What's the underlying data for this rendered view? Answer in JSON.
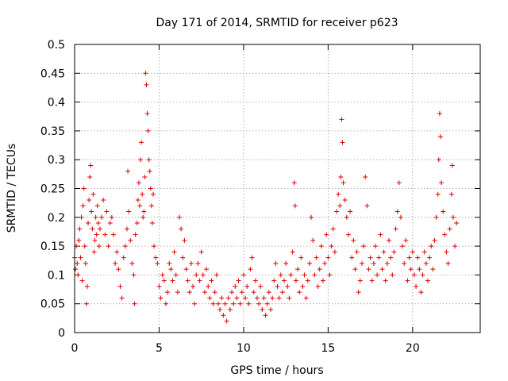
{
  "chart_data": {
    "type": "scatter",
    "title": "Day 171 of 2014, SRMTID for receiver p623",
    "xlabel": "GPS time / hours",
    "ylabel": "SRMTID / TECUs",
    "xlim": [
      0,
      24
    ],
    "ylim": [
      0,
      0.5
    ],
    "x_ticks": [
      0,
      5,
      10,
      15,
      20
    ],
    "x_tick_labels": [
      "0",
      "5",
      "10",
      "15",
      "20"
    ],
    "y_ticks": [
      0,
      0.05,
      0.1,
      0.15,
      0.2,
      0.25,
      0.3,
      0.35,
      0.4,
      0.45,
      0.5
    ],
    "y_tick_labels": [
      "0",
      "0.05",
      "0.1",
      "0.15",
      "0.2",
      "0.25",
      "0.3",
      "0.35",
      "0.4",
      "0.45",
      "0.5"
    ],
    "grid": true,
    "marker": "+",
    "color": "#e00000",
    "series": [
      {
        "name": "SRMTID",
        "points": [
          [
            0.0,
            0.13
          ],
          [
            0.05,
            0.11
          ],
          [
            0.1,
            0.15
          ],
          [
            0.15,
            0.12
          ],
          [
            0.2,
            0.1
          ],
          [
            0.25,
            0.16
          ],
          [
            0.3,
            0.18
          ],
          [
            0.35,
            0.13
          ],
          [
            0.4,
            0.2
          ],
          [
            0.45,
            0.09
          ],
          [
            0.5,
            0.22
          ],
          [
            0.55,
            0.25
          ],
          [
            0.6,
            0.15
          ],
          [
            0.65,
            0.12
          ],
          [
            0.7,
            0.05
          ],
          [
            0.75,
            0.08
          ],
          [
            0.8,
            0.19
          ],
          [
            0.85,
            0.23
          ],
          [
            0.9,
            0.27
          ],
          [
            0.95,
            0.29
          ],
          [
            1.0,
            0.21
          ],
          [
            1.05,
            0.18
          ],
          [
            1.1,
            0.24
          ],
          [
            1.15,
            0.14
          ],
          [
            1.2,
            0.16
          ],
          [
            1.25,
            0.2
          ],
          [
            1.3,
            0.17
          ],
          [
            1.35,
            0.22
          ],
          [
            1.4,
            0.19
          ],
          [
            1.45,
            0.15
          ],
          [
            1.5,
            0.18
          ],
          [
            1.6,
            0.2
          ],
          [
            1.7,
            0.23
          ],
          [
            1.8,
            0.17
          ],
          [
            1.9,
            0.21
          ],
          [
            2.0,
            0.15
          ],
          [
            2.1,
            0.19
          ],
          [
            2.2,
            0.2
          ],
          [
            2.3,
            0.17
          ],
          [
            2.4,
            0.12
          ],
          [
            2.5,
            0.14
          ],
          [
            2.6,
            0.11
          ],
          [
            2.7,
            0.08
          ],
          [
            2.8,
            0.06
          ],
          [
            2.9,
            0.13
          ],
          [
            3.0,
            0.15
          ],
          [
            3.1,
            0.18
          ],
          [
            3.15,
            0.28
          ],
          [
            3.2,
            0.21
          ],
          [
            3.3,
            0.16
          ],
          [
            3.4,
            0.12
          ],
          [
            3.5,
            0.1
          ],
          [
            3.55,
            0.05
          ],
          [
            3.6,
            0.17
          ],
          [
            3.7,
            0.19
          ],
          [
            3.75,
            0.23
          ],
          [
            3.8,
            0.26
          ],
          [
            3.85,
            0.22
          ],
          [
            3.9,
            0.3
          ],
          [
            3.95,
            0.33
          ],
          [
            4.0,
            0.24
          ],
          [
            4.05,
            0.2
          ],
          [
            4.1,
            0.21
          ],
          [
            4.15,
            0.27
          ],
          [
            4.2,
            0.45
          ],
          [
            4.25,
            0.43
          ],
          [
            4.3,
            0.38
          ],
          [
            4.35,
            0.35
          ],
          [
            4.4,
            0.3
          ],
          [
            4.45,
            0.28
          ],
          [
            4.5,
            0.25
          ],
          [
            4.55,
            0.22
          ],
          [
            4.6,
            0.19
          ],
          [
            4.65,
            0.24
          ],
          [
            4.7,
            0.15
          ],
          [
            4.8,
            0.13
          ],
          [
            4.9,
            0.12
          ],
          [
            5.0,
            0.08
          ],
          [
            5.1,
            0.06
          ],
          [
            5.2,
            0.1
          ],
          [
            5.3,
            0.09
          ],
          [
            5.4,
            0.05
          ],
          [
            5.5,
            0.07
          ],
          [
            5.6,
            0.12
          ],
          [
            5.7,
            0.11
          ],
          [
            5.8,
            0.09
          ],
          [
            5.9,
            0.14
          ],
          [
            6.0,
            0.1
          ],
          [
            6.1,
            0.07
          ],
          [
            6.2,
            0.2
          ],
          [
            6.3,
            0.18
          ],
          [
            6.4,
            0.13
          ],
          [
            6.5,
            0.16
          ],
          [
            6.6,
            0.11
          ],
          [
            6.7,
            0.09
          ],
          [
            6.8,
            0.07
          ],
          [
            6.9,
            0.12
          ],
          [
            7.0,
            0.08
          ],
          [
            7.1,
            0.05
          ],
          [
            7.2,
            0.1
          ],
          [
            7.3,
            0.12
          ],
          [
            7.4,
            0.09
          ],
          [
            7.5,
            0.14
          ],
          [
            7.6,
            0.1
          ],
          [
            7.7,
            0.07
          ],
          [
            7.8,
            0.11
          ],
          [
            7.9,
            0.08
          ],
          [
            8.0,
            0.06
          ],
          [
            8.1,
            0.09
          ],
          [
            8.2,
            0.05
          ],
          [
            8.3,
            0.07
          ],
          [
            8.4,
            0.1
          ],
          [
            8.5,
            0.05
          ],
          [
            8.6,
            0.04
          ],
          [
            8.7,
            0.06
          ],
          [
            8.8,
            0.03
          ],
          [
            8.9,
            0.05
          ],
          [
            9.0,
            0.02
          ],
          [
            9.1,
            0.06
          ],
          [
            9.2,
            0.04
          ],
          [
            9.3,
            0.07
          ],
          [
            9.4,
            0.05
          ],
          [
            9.5,
            0.08
          ],
          [
            9.6,
            0.06
          ],
          [
            9.7,
            0.09
          ],
          [
            9.8,
            0.05
          ],
          [
            9.9,
            0.07
          ],
          [
            10.0,
            0.1
          ],
          [
            10.1,
            0.06
          ],
          [
            10.2,
            0.08
          ],
          [
            10.3,
            0.05
          ],
          [
            10.4,
            0.11
          ],
          [
            10.5,
            0.13
          ],
          [
            10.6,
            0.07
          ],
          [
            10.7,
            0.09
          ],
          [
            10.8,
            0.06
          ],
          [
            10.9,
            0.05
          ],
          [
            11.0,
            0.08
          ],
          [
            11.1,
            0.04
          ],
          [
            11.2,
            0.06
          ],
          [
            11.3,
            0.03
          ],
          [
            11.4,
            0.05
          ],
          [
            11.5,
            0.07
          ],
          [
            11.6,
            0.04
          ],
          [
            11.7,
            0.06
          ],
          [
            11.8,
            0.09
          ],
          [
            11.9,
            0.12
          ],
          [
            12.0,
            0.08
          ],
          [
            12.1,
            0.06
          ],
          [
            12.2,
            0.1
          ],
          [
            12.3,
            0.07
          ],
          [
            12.4,
            0.09
          ],
          [
            12.5,
            0.12
          ],
          [
            12.6,
            0.08
          ],
          [
            12.7,
            0.06
          ],
          [
            12.8,
            0.1
          ],
          [
            12.9,
            0.14
          ],
          [
            13.0,
            0.26
          ],
          [
            13.05,
            0.22
          ],
          [
            13.1,
            0.09
          ],
          [
            13.2,
            0.11
          ],
          [
            13.3,
            0.07
          ],
          [
            13.4,
            0.13
          ],
          [
            13.5,
            0.08
          ],
          [
            13.6,
            0.1
          ],
          [
            13.7,
            0.06
          ],
          [
            13.8,
            0.09
          ],
          [
            13.9,
            0.12
          ],
          [
            14.0,
            0.2
          ],
          [
            14.1,
            0.16
          ],
          [
            14.2,
            0.1
          ],
          [
            14.3,
            0.13
          ],
          [
            14.4,
            0.08
          ],
          [
            14.5,
            0.11
          ],
          [
            14.6,
            0.15
          ],
          [
            14.7,
            0.09
          ],
          [
            14.8,
            0.12
          ],
          [
            14.9,
            0.17
          ],
          [
            15.0,
            0.13
          ],
          [
            15.1,
            0.1
          ],
          [
            15.2,
            0.15
          ],
          [
            15.3,
            0.18
          ],
          [
            15.4,
            0.14
          ],
          [
            15.5,
            0.21
          ],
          [
            15.6,
            0.24
          ],
          [
            15.7,
            0.22
          ],
          [
            15.75,
            0.27
          ],
          [
            15.8,
            0.37
          ],
          [
            15.85,
            0.33
          ],
          [
            15.9,
            0.26
          ],
          [
            16.0,
            0.23
          ],
          [
            16.1,
            0.2
          ],
          [
            16.2,
            0.17
          ],
          [
            16.3,
            0.21
          ],
          [
            16.4,
            0.13
          ],
          [
            16.5,
            0.16
          ],
          [
            16.6,
            0.11
          ],
          [
            16.7,
            0.14
          ],
          [
            16.8,
            0.07
          ],
          [
            16.9,
            0.09
          ],
          [
            17.0,
            0.12
          ],
          [
            17.1,
            0.15
          ],
          [
            17.2,
            0.27
          ],
          [
            17.3,
            0.22
          ],
          [
            17.4,
            0.11
          ],
          [
            17.5,
            0.13
          ],
          [
            17.6,
            0.09
          ],
          [
            17.7,
            0.12
          ],
          [
            17.8,
            0.15
          ],
          [
            17.9,
            0.1
          ],
          [
            18.0,
            0.13
          ],
          [
            18.1,
            0.17
          ],
          [
            18.2,
            0.11
          ],
          [
            18.3,
            0.14
          ],
          [
            18.4,
            0.09
          ],
          [
            18.5,
            0.12
          ],
          [
            18.6,
            0.16
          ],
          [
            18.7,
            0.13
          ],
          [
            18.8,
            0.1
          ],
          [
            18.9,
            0.14
          ],
          [
            19.0,
            0.18
          ],
          [
            19.1,
            0.21
          ],
          [
            19.2,
            0.26
          ],
          [
            19.3,
            0.2
          ],
          [
            19.4,
            0.15
          ],
          [
            19.5,
            0.12
          ],
          [
            19.6,
            0.16
          ],
          [
            19.7,
            0.09
          ],
          [
            19.8,
            0.13
          ],
          [
            19.9,
            0.11
          ],
          [
            20.0,
            0.14
          ],
          [
            20.1,
            0.1
          ],
          [
            20.2,
            0.08
          ],
          [
            20.3,
            0.13
          ],
          [
            20.4,
            0.11
          ],
          [
            20.5,
            0.07
          ],
          [
            20.6,
            0.1
          ],
          [
            20.7,
            0.14
          ],
          [
            20.8,
            0.12
          ],
          [
            20.9,
            0.09
          ],
          [
            21.0,
            0.13
          ],
          [
            21.1,
            0.15
          ],
          [
            21.2,
            0.11
          ],
          [
            21.3,
            0.16
          ],
          [
            21.4,
            0.2
          ],
          [
            21.5,
            0.24
          ],
          [
            21.55,
            0.3
          ],
          [
            21.6,
            0.38
          ],
          [
            21.65,
            0.34
          ],
          [
            21.7,
            0.26
          ],
          [
            21.8,
            0.21
          ],
          [
            21.9,
            0.17
          ],
          [
            22.0,
            0.14
          ],
          [
            22.1,
            0.12
          ],
          [
            22.2,
            0.18
          ],
          [
            22.3,
            0.24
          ],
          [
            22.35,
            0.29
          ],
          [
            22.4,
            0.2
          ],
          [
            22.5,
            0.15
          ],
          [
            22.6,
            0.19
          ]
        ]
      }
    ]
  }
}
